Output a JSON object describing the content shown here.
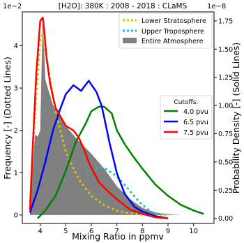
{
  "chart_data": {
    "type": "line",
    "title": "[H2O]: 380K : 2008 - 2018 : CLaMS",
    "xlabel": "Mixing Ratio in ppmv",
    "ylabel_left": "Frequency [-] (Dotted Lines)",
    "ylabel_right": "Probability Density [-] (Solid Lines)",
    "left_exponent": "1e−2",
    "right_exponent": "1e−8",
    "xlim": [
      3.3,
      10.8
    ],
    "ylim_left": [
      -0.2,
      4.8
    ],
    "ylim_right": [
      -0.045,
      1.83
    ],
    "x_ticks": [
      4,
      5,
      6,
      7,
      8,
      9,
      10
    ],
    "left_ticks": [
      0,
      1,
      2,
      3,
      4
    ],
    "right_ticks": [
      0.0,
      0.25,
      0.5,
      0.75,
      1.0,
      1.25,
      1.5,
      1.75
    ],
    "right_tick_labels": [
      "0.00",
      "0.25",
      "0.50",
      "0.75",
      "1.00",
      "1.25",
      "1.50",
      "1.75"
    ],
    "grid": false,
    "legend_top": {
      "placement": "top-right",
      "entries": [
        {
          "label": "Lower Stratosphere",
          "color": "#cccc00",
          "style": "dotted"
        },
        {
          "label": "Upper Troposphere",
          "color": "#17becf",
          "style": "dotted"
        },
        {
          "label": "Entire Atmosphere",
          "color": "#808080",
          "style": "fill"
        }
      ]
    },
    "legend_cutoffs": {
      "title": "Cutoffs:",
      "placement": "center-right",
      "entries": [
        {
          "label": "4.0 pvu",
          "color": "#008000"
        },
        {
          "label": "6.5 pvu",
          "color": "#0000ff"
        },
        {
          "label": "7.5 pvu",
          "color": "#ff0000"
        }
      ]
    },
    "series": [
      {
        "name": "Entire Atmosphere",
        "axis": "left",
        "kind": "area",
        "color": "#808080",
        "x": [
          3.6,
          3.8,
          3.9,
          4.0,
          4.1,
          4.2,
          4.5,
          5.0,
          5.5,
          6.0,
          6.5,
          7.0,
          7.5,
          8.0,
          8.5,
          9.0,
          9.5
        ],
        "y": [
          0.25,
          1.9,
          1.85,
          2.0,
          4.7,
          3.2,
          2.6,
          2.1,
          1.75,
          1.45,
          1.1,
          0.68,
          0.38,
          0.17,
          0.06,
          0.02,
          0.0
        ]
      },
      {
        "name": "Lower Stratosphere",
        "axis": "left",
        "kind": "dotted",
        "color": "#cccc00",
        "x": [
          3.6,
          3.8,
          4.0,
          4.1,
          4.2,
          4.4,
          4.6,
          5.0,
          5.5,
          6.0,
          6.5,
          7.0,
          7.5,
          8.0,
          8.5,
          9.0
        ],
        "y": [
          0.3,
          2.4,
          4.1,
          4.3,
          3.9,
          3.2,
          2.45,
          1.5,
          0.85,
          0.45,
          0.23,
          0.1,
          0.04,
          0.01,
          0.0,
          0.0
        ]
      },
      {
        "name": "Upper Troposphere",
        "axis": "left",
        "kind": "dotted",
        "color": "#17becf",
        "x": [
          5.8,
          6.0,
          6.2,
          6.4,
          6.6,
          6.8,
          7.0,
          7.2,
          7.4,
          7.6,
          7.8,
          8.0,
          8.2,
          8.4,
          8.6
        ],
        "y": [
          1.05,
          1.1,
          1.1,
          1.12,
          1.08,
          1.0,
          0.9,
          0.78,
          0.65,
          0.5,
          0.36,
          0.24,
          0.14,
          0.06,
          0.02
        ]
      },
      {
        "name": "4.0 pvu",
        "axis": "right",
        "kind": "line",
        "color": "#008000",
        "x": [
          3.9,
          4.2,
          4.6,
          5.0,
          5.4,
          5.8,
          6.0,
          6.3,
          6.5,
          6.8,
          7.0,
          7.3,
          7.6,
          8.0,
          8.5,
          9.0,
          9.5,
          10.0,
          10.4
        ],
        "y": [
          0.0,
          0.07,
          0.2,
          0.42,
          0.68,
          0.85,
          0.95,
          0.99,
          0.99,
          0.93,
          0.78,
          0.66,
          0.56,
          0.44,
          0.3,
          0.2,
          0.12,
          0.07,
          0.04
        ]
      },
      {
        "name": "6.5 pvu",
        "axis": "right",
        "kind": "line",
        "color": "#0000ff",
        "x": [
          3.6,
          3.9,
          4.2,
          4.5,
          4.8,
          5.0,
          5.3,
          5.6,
          5.9,
          6.2,
          6.4,
          6.5,
          6.7,
          7.0,
          7.3,
          7.7,
          8.0,
          8.5,
          9.0
        ],
        "y": [
          0.05,
          0.25,
          0.5,
          0.78,
          0.98,
          1.1,
          1.18,
          1.13,
          1.22,
          1.12,
          1.0,
          0.9,
          0.68,
          0.4,
          0.22,
          0.1,
          0.06,
          0.02,
          0.0
        ]
      },
      {
        "name": "7.5 pvu",
        "axis": "right",
        "kind": "line",
        "color": "#ff0000",
        "x": [
          3.6,
          3.7,
          3.85,
          4.0,
          4.1,
          4.15,
          4.25,
          4.4,
          4.6,
          5.0,
          5.3,
          5.5,
          5.7,
          5.9,
          6.0,
          6.3,
          6.6,
          7.0,
          7.5,
          8.0,
          8.5,
          9.0
        ],
        "y": [
          0.07,
          0.6,
          1.3,
          1.75,
          1.78,
          1.68,
          1.42,
          1.18,
          0.98,
          0.82,
          0.78,
          0.72,
          0.62,
          0.5,
          0.45,
          0.32,
          0.25,
          0.17,
          0.08,
          0.04,
          0.01,
          0.0
        ]
      }
    ]
  }
}
